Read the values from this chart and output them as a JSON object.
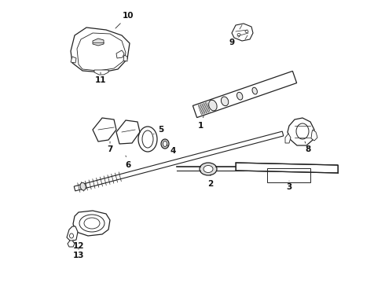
{
  "bg_color": "#ffffff",
  "line_color": "#222222",
  "label_color": "#111111",
  "fig_width": 4.9,
  "fig_height": 3.6,
  "dpi": 100
}
